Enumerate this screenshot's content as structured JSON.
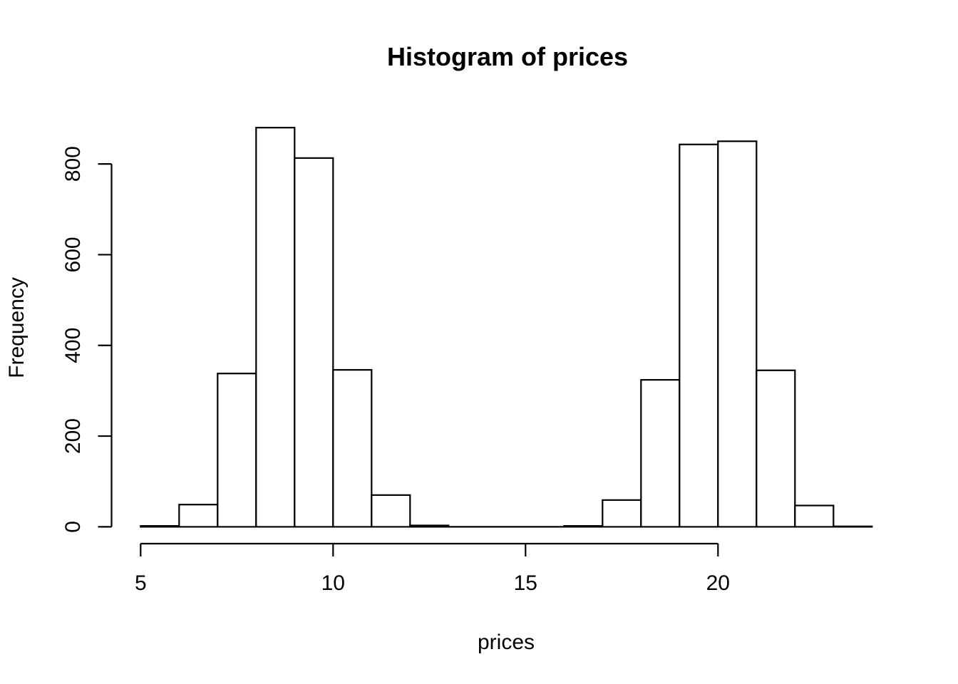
{
  "title": "Histogram of prices",
  "chart_data": {
    "type": "bar",
    "subtype": "histogram",
    "title": "Histogram of prices",
    "xlabel": "prices",
    "ylabel": "Frequency",
    "bin_width": 1,
    "bin_edges": [
      5,
      6,
      7,
      8,
      9,
      10,
      11,
      12,
      13,
      14,
      15,
      16,
      17,
      18,
      19,
      20,
      21,
      22,
      23,
      24
    ],
    "counts": [
      2,
      49,
      338,
      880,
      813,
      346,
      70,
      3,
      0,
      0,
      0,
      2,
      59,
      324,
      843,
      850,
      345,
      47,
      1
    ],
    "x_ticks": [
      5,
      10,
      15,
      20
    ],
    "y_ticks": [
      0,
      200,
      400,
      600,
      800
    ],
    "xlim": [
      5,
      24
    ],
    "ylim": [
      0,
      880
    ],
    "grid": "off",
    "legend": "none",
    "bar_fill": "#ffffff",
    "bar_stroke": "#000000",
    "axis_color": "#000000",
    "background": "#ffffff"
  }
}
